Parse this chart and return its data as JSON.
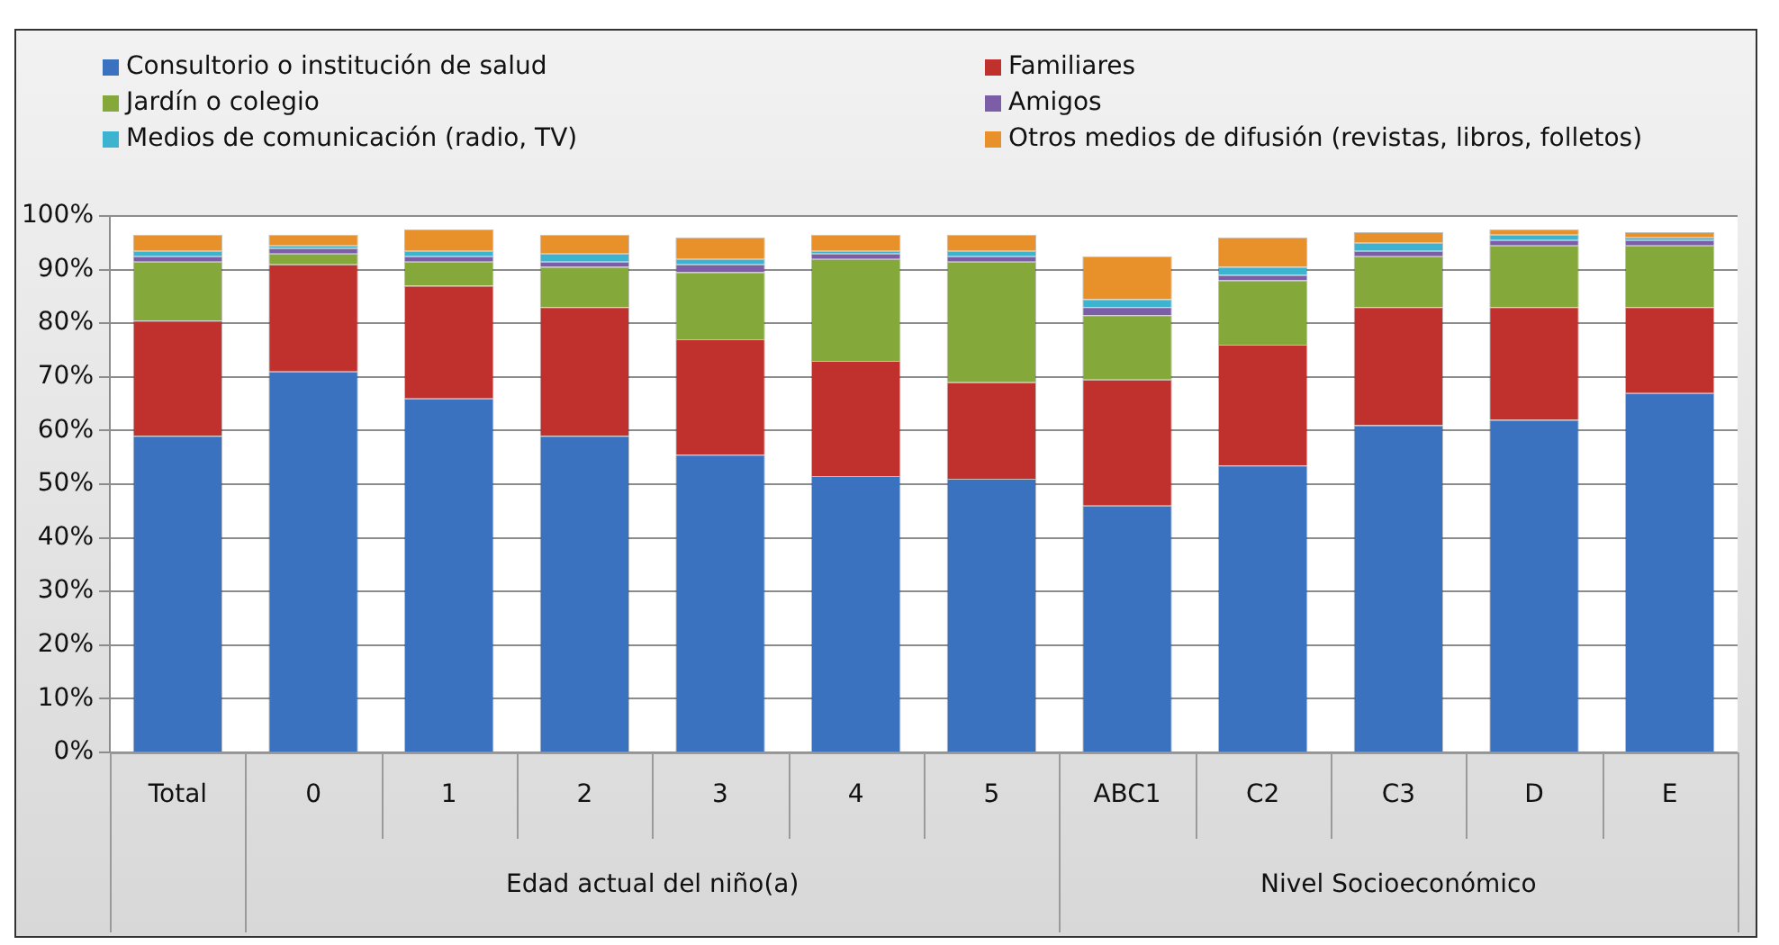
{
  "chart_data": {
    "type": "bar",
    "stacked": true,
    "categories": [
      "Total",
      "0",
      "1",
      "2",
      "3",
      "4",
      "5",
      "ABC1",
      "C2",
      "C3",
      "D",
      "E"
    ],
    "series": [
      {
        "name": "Consultorio o institución de salud",
        "color": "#3a72c0",
        "values": [
          59,
          71,
          66,
          59,
          55.5,
          51.5,
          51,
          46,
          53.5,
          61,
          62,
          67
        ]
      },
      {
        "name": "Familiares",
        "color": "#c0312e",
        "values": [
          21.5,
          20,
          21,
          24,
          21.5,
          21.5,
          18,
          23.5,
          22.5,
          22,
          21,
          16
        ]
      },
      {
        "name": "Jardín o colegio",
        "color": "#84a83a",
        "values": [
          11,
          2,
          4.5,
          7.5,
          12.5,
          19,
          22.5,
          12,
          12,
          9.5,
          11.5,
          11.5
        ]
      },
      {
        "name": "Amigos",
        "color": "#7b5ea7",
        "values": [
          1,
          1,
          1,
          1,
          1.5,
          1,
          1,
          1.5,
          1,
          1,
          1,
          1
        ]
      },
      {
        "name": "Medios de comunicación (radio, TV)",
        "color": "#3cb4d0",
        "values": [
          1,
          0.5,
          1,
          1.5,
          1,
          0.5,
          1,
          1.5,
          1.5,
          1.5,
          1,
          0.5
        ]
      },
      {
        "name": "Otros medios de difusión (revistas, libros, folletos)",
        "color": "#e8902a",
        "values": [
          3,
          2,
          4,
          3.5,
          4,
          3,
          3,
          8,
          5.5,
          2,
          1,
          1
        ]
      }
    ],
    "ylim": [
      0,
      100
    ],
    "yticks": [
      {
        "value": 0,
        "label": "0%"
      },
      {
        "value": 10,
        "label": "10%"
      },
      {
        "value": 20,
        "label": "20%"
      },
      {
        "value": 30,
        "label": "30%"
      },
      {
        "value": 40,
        "label": "40%"
      },
      {
        "value": 50,
        "label": "50%"
      },
      {
        "value": 60,
        "label": "60%"
      },
      {
        "value": 70,
        "label": "70%"
      },
      {
        "value": 80,
        "label": "80%"
      },
      {
        "value": 90,
        "label": "90%"
      },
      {
        "value": 100,
        "label": "100%"
      }
    ],
    "grid": "y",
    "legend": "top",
    "annotations": [
      "Edad actual del niño(a)",
      "Nivel Socioeconómico"
    ]
  }
}
